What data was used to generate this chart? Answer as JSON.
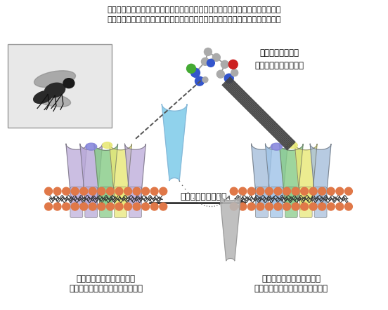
{
  "title_line1": "サブユニット遺伝子の発現量の抑制や２つの異なるサブユニットの置換によって",
  "title_line2": "ニコチン性アセチルコリン受容体のネオニコチノイド感受性が高まる場合がある",
  "label_compound": "ネオニコチノイド\n（イミダクロブリド）",
  "label_subunit_replacement": "サブユニットの置換",
  "label_left_top": "ネオニコチノイド低感受性",
  "label_left_bottom": "ニコチン性アセチルコリン受容体",
  "label_right_top": "ネオニコチノイド高感受性",
  "label_right_bottom": "ニコチン性アセチルコリン受容体",
  "bg_color": "#ffffff",
  "text_color": "#000000",
  "membrane_dot_color": "#e07848",
  "subunit_colors_left": [
    "#c0b0dc",
    "#b0b8c8",
    "#88cc88",
    "#e0e888",
    "#c0b0dc"
  ],
  "subunit_colors_right": [
    "#b0c8e0",
    "#a8c8e8",
    "#88cc88",
    "#e0e888",
    "#b0c8e0"
  ],
  "blue_subunit_color": "#87ceeb",
  "gray_subunit_color": "#b8b8b8",
  "arrow_color": "#333333",
  "dashed_color": "#555555",
  "hatched_color": "#444444"
}
